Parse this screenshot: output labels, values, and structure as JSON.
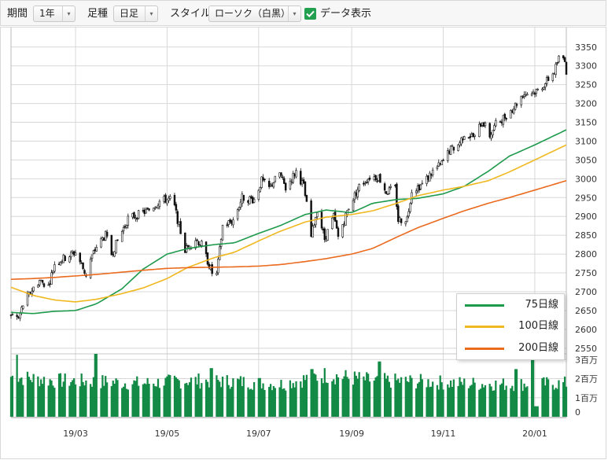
{
  "toolbar": {
    "period_label": "期間",
    "period_value": "1年",
    "candle_label": "足種",
    "candle_value": "日足",
    "style_label": "スタイル",
    "style_value": "ローソク（白黒）",
    "data_display_label": "データ表示",
    "data_display_checked": true,
    "arrow_glyph": "▾"
  },
  "colors": {
    "ma75": "#1e9a4c",
    "ma100": "#f0b820",
    "ma200": "#ea6a1e",
    "volume": "#138a46",
    "grid": "#d8d8d8",
    "checkbox": "#23a04f"
  },
  "legend": [
    {
      "label": "75日線",
      "color": "#1e9a4c"
    },
    {
      "label": "100日線",
      "color": "#f0b820"
    },
    {
      "label": "200日線",
      "color": "#ea6a1e"
    }
  ],
  "chart_data": {
    "type": "candlestick",
    "x_tick_labels": [
      "19/03",
      "19/05",
      "19/07",
      "19/09",
      "19/11",
      "20/01"
    ],
    "x_tick_dates": [
      "2019-03-01",
      "2019-05-01",
      "2019-07-01",
      "2019-09-01",
      "2019-11-01",
      "2020-01-01"
    ],
    "x_range": [
      "2019-01-17",
      "2020-01-22"
    ],
    "price_axis": {
      "ticks": [
        2550,
        2600,
        2650,
        2700,
        2750,
        2800,
        2850,
        2900,
        2950,
        3000,
        3050,
        3100,
        3150,
        3200,
        3250,
        3300,
        3350
      ],
      "ylim": [
        2535,
        3360
      ],
      "position": "right"
    },
    "volume_axis": {
      "ticks": [
        0,
        1,
        2,
        3
      ],
      "tick_labels": [
        "0",
        "1百万",
        "2百万",
        "3百万"
      ],
      "unit": "百万",
      "ylim": [
        0,
        3.3
      ]
    },
    "close_series": {
      "name": "close",
      "points": [
        [
          "2019-01-17",
          2640
        ],
        [
          "2019-01-22",
          2630
        ],
        [
          "2019-01-25",
          2665
        ],
        [
          "2019-01-31",
          2705
        ],
        [
          "2019-02-05",
          2730
        ],
        [
          "2019-02-11",
          2715
        ],
        [
          "2019-02-15",
          2775
        ],
        [
          "2019-02-22",
          2790
        ],
        [
          "2019-03-01",
          2805
        ],
        [
          "2019-03-08",
          2745
        ],
        [
          "2019-03-11",
          2785
        ],
        [
          "2019-03-15",
          2820
        ],
        [
          "2019-03-21",
          2850
        ],
        [
          "2019-03-25",
          2800
        ],
        [
          "2019-03-29",
          2835
        ],
        [
          "2019-04-05",
          2895
        ],
        [
          "2019-04-12",
          2905
        ],
        [
          "2019-04-18",
          2915
        ],
        [
          "2019-04-26",
          2940
        ],
        [
          "2019-04-30",
          2945
        ],
        [
          "2019-05-03",
          2945
        ],
        [
          "2019-05-06",
          2925
        ],
        [
          "2019-05-09",
          2875
        ],
        [
          "2019-05-13",
          2810
        ],
        [
          "2019-05-20",
          2840
        ],
        [
          "2019-05-24",
          2825
        ],
        [
          "2019-05-31",
          2750
        ],
        [
          "2019-06-03",
          2745
        ],
        [
          "2019-06-07",
          2875
        ],
        [
          "2019-06-14",
          2890
        ],
        [
          "2019-06-20",
          2950
        ],
        [
          "2019-06-28",
          2945
        ],
        [
          "2019-07-03",
          2995
        ],
        [
          "2019-07-08",
          2975
        ],
        [
          "2019-07-15",
          3015
        ],
        [
          "2019-07-19",
          2975
        ],
        [
          "2019-07-26",
          3020
        ],
        [
          "2019-07-31",
          2980
        ],
        [
          "2019-08-02",
          2930
        ],
        [
          "2019-08-05",
          2845
        ],
        [
          "2019-08-09",
          2920
        ],
        [
          "2019-08-14",
          2840
        ],
        [
          "2019-08-20",
          2900
        ],
        [
          "2019-08-23",
          2845
        ],
        [
          "2019-08-30",
          2925
        ],
        [
          "2019-09-06",
          2980
        ],
        [
          "2019-09-13",
          3005
        ],
        [
          "2019-09-19",
          3005
        ],
        [
          "2019-09-24",
          2965
        ],
        [
          "2019-09-30",
          2975
        ],
        [
          "2019-10-02",
          2890
        ],
        [
          "2019-10-08",
          2895
        ],
        [
          "2019-10-11",
          2970
        ],
        [
          "2019-10-18",
          2985
        ],
        [
          "2019-10-25",
          3020
        ],
        [
          "2019-10-31",
          3040
        ],
        [
          "2019-11-05",
          3075
        ],
        [
          "2019-11-11",
          3090
        ],
        [
          "2019-11-15",
          3120
        ],
        [
          "2019-11-22",
          3110
        ],
        [
          "2019-11-27",
          3155
        ],
        [
          "2019-12-02",
          3115
        ],
        [
          "2019-12-06",
          3145
        ],
        [
          "2019-12-12",
          3165
        ],
        [
          "2019-12-18",
          3190
        ],
        [
          "2019-12-24",
          3225
        ],
        [
          "2019-12-31",
          3230
        ],
        [
          "2020-01-03",
          3235
        ],
        [
          "2020-01-08",
          3255
        ],
        [
          "2020-01-14",
          3285
        ],
        [
          "2020-01-17",
          3320
        ],
        [
          "2020-01-21",
          3320
        ],
        [
          "2020-01-22",
          3285
        ]
      ]
    },
    "moving_averages": [
      {
        "name": "75日線",
        "color": "#1e9a4c",
        "points": [
          [
            "2019-01-17",
            2645
          ],
          [
            "2019-02-01",
            2642
          ],
          [
            "2019-02-15",
            2648
          ],
          [
            "2019-03-01",
            2650
          ],
          [
            "2019-03-15",
            2668
          ],
          [
            "2019-04-01",
            2708
          ],
          [
            "2019-04-15",
            2760
          ],
          [
            "2019-05-01",
            2800
          ],
          [
            "2019-05-15",
            2815
          ],
          [
            "2019-06-01",
            2825
          ],
          [
            "2019-06-15",
            2830
          ],
          [
            "2019-07-01",
            2855
          ],
          [
            "2019-07-15",
            2875
          ],
          [
            "2019-08-01",
            2905
          ],
          [
            "2019-08-15",
            2917
          ],
          [
            "2019-09-01",
            2910
          ],
          [
            "2019-09-15",
            2935
          ],
          [
            "2019-10-01",
            2945
          ],
          [
            "2019-10-15",
            2948
          ],
          [
            "2019-11-01",
            2960
          ],
          [
            "2019-11-15",
            2980
          ],
          [
            "2019-12-01",
            3020
          ],
          [
            "2019-12-15",
            3060
          ],
          [
            "2020-01-01",
            3090
          ],
          [
            "2020-01-22",
            3130
          ]
        ]
      },
      {
        "name": "100日線",
        "color": "#f0b820",
        "points": [
          [
            "2019-01-17",
            2712
          ],
          [
            "2019-02-01",
            2690
          ],
          [
            "2019-02-15",
            2678
          ],
          [
            "2019-03-01",
            2673
          ],
          [
            "2019-03-15",
            2680
          ],
          [
            "2019-04-01",
            2695
          ],
          [
            "2019-04-15",
            2710
          ],
          [
            "2019-05-01",
            2735
          ],
          [
            "2019-05-15",
            2765
          ],
          [
            "2019-06-01",
            2790
          ],
          [
            "2019-06-15",
            2805
          ],
          [
            "2019-07-01",
            2835
          ],
          [
            "2019-07-15",
            2860
          ],
          [
            "2019-08-01",
            2885
          ],
          [
            "2019-08-15",
            2898
          ],
          [
            "2019-09-01",
            2905
          ],
          [
            "2019-09-15",
            2915
          ],
          [
            "2019-10-01",
            2935
          ],
          [
            "2019-10-15",
            2955
          ],
          [
            "2019-11-01",
            2970
          ],
          [
            "2019-11-15",
            2980
          ],
          [
            "2019-12-01",
            2995
          ],
          [
            "2019-12-15",
            3018
          ],
          [
            "2020-01-01",
            3050
          ],
          [
            "2020-01-22",
            3090
          ]
        ]
      },
      {
        "name": "200日線",
        "color": "#ea6a1e",
        "points": [
          [
            "2019-01-17",
            2733
          ],
          [
            "2019-02-01",
            2735
          ],
          [
            "2019-02-15",
            2738
          ],
          [
            "2019-03-01",
            2742
          ],
          [
            "2019-03-15",
            2746
          ],
          [
            "2019-04-01",
            2752
          ],
          [
            "2019-04-15",
            2757
          ],
          [
            "2019-05-01",
            2762
          ],
          [
            "2019-05-15",
            2764
          ],
          [
            "2019-06-01",
            2765
          ],
          [
            "2019-06-15",
            2766
          ],
          [
            "2019-07-01",
            2768
          ],
          [
            "2019-07-15",
            2772
          ],
          [
            "2019-08-01",
            2780
          ],
          [
            "2019-08-15",
            2788
          ],
          [
            "2019-09-01",
            2800
          ],
          [
            "2019-09-15",
            2815
          ],
          [
            "2019-10-01",
            2845
          ],
          [
            "2019-10-15",
            2870
          ],
          [
            "2019-11-01",
            2895
          ],
          [
            "2019-11-15",
            2915
          ],
          [
            "2019-12-01",
            2935
          ],
          [
            "2019-12-15",
            2950
          ],
          [
            "2020-01-01",
            2970
          ],
          [
            "2020-01-22",
            2995
          ]
        ]
      }
    ],
    "volume_profile": [
      [
        "2019-01-17",
        2.1
      ],
      [
        "2019-02-15",
        1.9
      ],
      [
        "2019-03-15",
        1.85
      ],
      [
        "2019-04-15",
        1.75
      ],
      [
        "2019-05-15",
        1.9
      ],
      [
        "2019-06-15",
        1.85
      ],
      [
        "2019-07-15",
        1.7
      ],
      [
        "2019-08-15",
        2.2
      ],
      [
        "2019-09-15",
        1.9
      ],
      [
        "2019-10-15",
        1.85
      ],
      [
        "2019-11-15",
        1.75
      ],
      [
        "2019-12-15",
        1.7
      ],
      [
        "2020-01-22",
        1.75
      ]
    ],
    "volume_spikes": [
      [
        "2019-01-20",
        3.25
      ],
      [
        "2019-03-15",
        3.3
      ],
      [
        "2019-05-31",
        2.55
      ],
      [
        "2019-08-05",
        2.5
      ],
      [
        "2019-09-20",
        2.9
      ],
      [
        "2019-12-20",
        2.5
      ],
      [
        "2019-12-31",
        3.1
      ],
      [
        "2020-01-02",
        0.55
      ]
    ]
  }
}
